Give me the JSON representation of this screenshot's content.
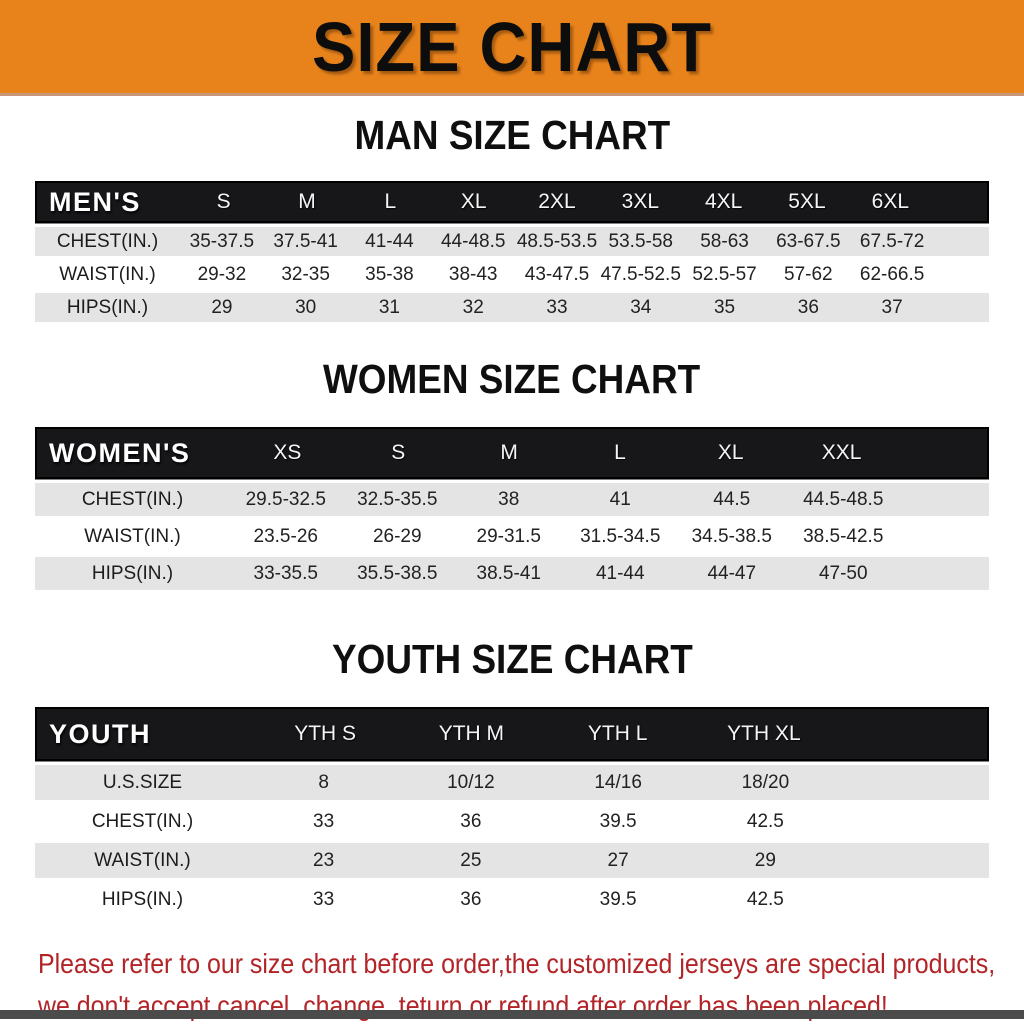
{
  "banner": {
    "title": "SIZE CHART"
  },
  "colors": {
    "banner_bg": "#E8831C",
    "table_header_bg": "#17171A",
    "row_alt_bg": "#E4E4E4",
    "footer_text": "#B22427",
    "bottom_bar": "#4B4B4B"
  },
  "chart_data": [
    {
      "type": "table",
      "title": "MAN SIZE CHART",
      "corner_label": "MEN'S",
      "columns": [
        "S",
        "M",
        "L",
        "XL",
        "2XL",
        "3XL",
        "4XL",
        "5XL",
        "6XL"
      ],
      "rows": [
        {
          "label": "CHEST(IN.)",
          "values": [
            "35-37.5",
            "37.5-41",
            "41-44",
            "44-48.5",
            "48.5-53.5",
            "53.5-58",
            "58-63",
            "63-67.5",
            "67.5-72"
          ]
        },
        {
          "label": "WAIST(IN.)",
          "values": [
            "29-32",
            "32-35",
            "35-38",
            "38-43",
            "43-47.5",
            "47.5-52.5",
            "52.5-57",
            "57-62",
            "62-66.5"
          ]
        },
        {
          "label": "HIPS(IN.)",
          "values": [
            "29",
            "30",
            "31",
            "32",
            "33",
            "34",
            "35",
            "36",
            "37"
          ]
        }
      ]
    },
    {
      "type": "table",
      "title": "WOMEN SIZE CHART",
      "corner_label": "WOMEN'S",
      "columns": [
        "XS",
        "S",
        "M",
        "L",
        "XL",
        "XXL"
      ],
      "rows": [
        {
          "label": "CHEST(IN.)",
          "values": [
            "29.5-32.5",
            "32.5-35.5",
            "38",
            "41",
            "44.5",
            "44.5-48.5"
          ]
        },
        {
          "label": "WAIST(IN.)",
          "values": [
            "23.5-26",
            "26-29",
            "29-31.5",
            "31.5-34.5",
            "34.5-38.5",
            "38.5-42.5"
          ]
        },
        {
          "label": "HIPS(IN.)",
          "values": [
            "33-35.5",
            "35.5-38.5",
            "38.5-41",
            "41-44",
            "44-47",
            "47-50"
          ]
        }
      ]
    },
    {
      "type": "table",
      "title": "YOUTH SIZE CHART",
      "corner_label": "YOUTH",
      "columns": [
        "YTH S",
        "YTH M",
        "YTH L",
        "YTH XL"
      ],
      "rows": [
        {
          "label": "U.S.SIZE",
          "values": [
            "8",
            "10/12",
            "14/16",
            "18/20"
          ]
        },
        {
          "label": "CHEST(IN.)",
          "values": [
            "33",
            "36",
            "39.5",
            "42.5"
          ]
        },
        {
          "label": "WAIST(IN.)",
          "values": [
            "23",
            "25",
            "27",
            "29"
          ]
        },
        {
          "label": "HIPS(IN.)",
          "values": [
            "33",
            "36",
            "39.5",
            "42.5"
          ]
        }
      ]
    }
  ],
  "footer": {
    "line1": "Please refer to our size chart before order,the customized jerseys are special products,",
    "line2": "we don't accept cancel, change, teturn or refund after order has been placed!"
  }
}
